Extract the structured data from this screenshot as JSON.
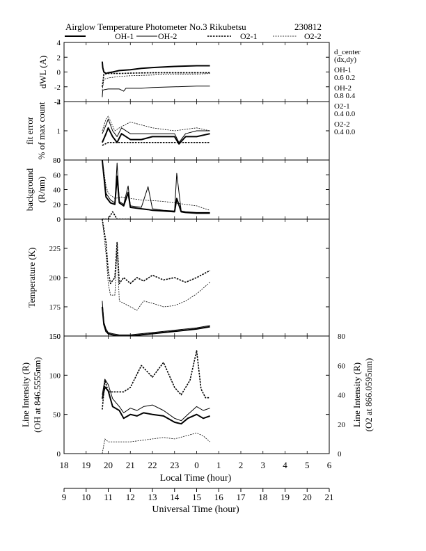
{
  "header": {
    "title": "Airglow Temperature Photometer No.3  Rikubetsu",
    "date": "230812"
  },
  "legend": [
    {
      "name": "OH-1",
      "style": "solid-thick"
    },
    {
      "name": "OH-2",
      "style": "solid-thin"
    },
    {
      "name": "O2-1",
      "style": "dotted-thick"
    },
    {
      "name": "O2-2",
      "style": "dotted-thin"
    }
  ],
  "side_info": {
    "heading1": "d_center",
    "heading2": "(dx,dy)",
    "entries": [
      {
        "label": "OH-1",
        "value": "0.6  0.2"
      },
      {
        "label": "OH-2",
        "value": "0.8  0.4"
      },
      {
        "label": "O2-1",
        "value": "0.4  0.0"
      },
      {
        "label": "O2-2",
        "value": "0.4  0.0"
      }
    ]
  },
  "chart_data": {
    "type": "line",
    "x_axis": {
      "label": "Local Time (hour)",
      "range": [
        18,
        30
      ],
      "ticks": [
        "18",
        "19",
        "20",
        "21",
        "22",
        "23",
        "0",
        "1",
        "2",
        "3",
        "4",
        "5",
        "6"
      ]
    },
    "x2_axis": {
      "label": "Universal Time (hour)",
      "ticks": [
        "9",
        "10",
        "11",
        "12",
        "13",
        "14",
        "15",
        "16",
        "17",
        "18",
        "19",
        "20",
        "21"
      ]
    },
    "panels": [
      {
        "id": "dwl",
        "ylabel": [
          "dWL (A)"
        ],
        "ylim": [
          -4,
          4
        ],
        "yticks": [
          "4",
          "2",
          "0",
          "-2",
          "-4"
        ],
        "series": [
          {
            "name": "OH-1",
            "x": [
              19.73,
              19.75,
              19.8,
              19.9,
              20.0,
              20.2,
              20.5,
              21.0,
              21.5,
              22.0,
              23.0,
              24.0,
              24.6
            ],
            "y": [
              1.4,
              0.6,
              0.0,
              -0.2,
              -0.1,
              0.0,
              0.2,
              0.3,
              0.5,
              0.6,
              0.75,
              0.85,
              0.85
            ]
          },
          {
            "name": "OH-2",
            "x": [
              19.73,
              19.75,
              19.8,
              20.0,
              20.5,
              20.7,
              20.8,
              21.5,
              22.0,
              23.0,
              24.0,
              24.6
            ],
            "y": [
              -3.4,
              -2.5,
              -2.4,
              -2.3,
              -2.3,
              -2.6,
              -2.2,
              -2.2,
              -2.1,
              -2.0,
              -1.9,
              -1.9
            ]
          },
          {
            "name": "O2-1",
            "x": [
              19.73,
              19.8,
              20.0,
              20.5,
              21.0,
              22.0,
              23.0,
              24.0,
              24.6
            ],
            "y": [
              -2.0,
              -0.3,
              -0.2,
              -0.2,
              -0.15,
              -0.1,
              -0.1,
              -0.1,
              -0.1
            ]
          },
          {
            "name": "O2-2",
            "x": [
              19.73,
              19.8,
              20.0,
              20.5,
              21.0,
              22.0,
              23.0,
              24.0,
              24.6
            ],
            "y": [
              -2.5,
              -1.0,
              -0.8,
              -0.6,
              -0.5,
              -0.4,
              -0.3,
              -0.3,
              -0.2
            ]
          }
        ]
      },
      {
        "id": "fit",
        "ylabel": [
          "fit error",
          "% of max count"
        ],
        "ylim": [
          0,
          2
        ],
        "yticks": [
          "2",
          "1",
          "0"
        ],
        "series": [
          {
            "name": "OH-1",
            "x": [
              19.73,
              19.9,
              20.0,
              20.2,
              20.4,
              20.6,
              21.0,
              21.5,
              22.0,
              22.5,
              23.0,
              23.2,
              23.5,
              24.0,
              24.6
            ],
            "y": [
              0.6,
              0.9,
              1.1,
              0.8,
              0.6,
              0.9,
              0.7,
              0.7,
              0.8,
              0.8,
              0.8,
              0.55,
              0.8,
              0.8,
              0.9
            ]
          },
          {
            "name": "OH-2",
            "x": [
              19.73,
              19.9,
              20.0,
              20.2,
              20.4,
              20.6,
              21.0,
              21.5,
              22.0,
              22.5,
              23.0,
              23.2,
              23.5,
              24.0,
              24.6
            ],
            "y": [
              0.9,
              1.2,
              1.4,
              1.0,
              0.8,
              1.1,
              0.9,
              0.9,
              0.9,
              0.9,
              0.9,
              0.6,
              0.9,
              1.0,
              1.0
            ]
          },
          {
            "name": "O2-1",
            "x": [
              19.73,
              20.0,
              20.5,
              21.0,
              21.5,
              22.0,
              23.0,
              24.0,
              24.6
            ],
            "y": [
              0.5,
              0.6,
              0.6,
              0.6,
              0.6,
              0.6,
              0.6,
              0.6,
              0.6
            ]
          },
          {
            "name": "O2-2",
            "x": [
              19.73,
              19.9,
              20.0,
              20.3,
              20.5,
              21.0,
              21.5,
              22.0,
              23.0,
              24.0,
              24.6
            ],
            "y": [
              1.0,
              1.4,
              1.5,
              1.0,
              1.1,
              1.3,
              1.2,
              1.1,
              1.0,
              1.1,
              1.0
            ]
          }
        ]
      },
      {
        "id": "bg",
        "ylabel": [
          "background",
          "(R/nm)"
        ],
        "ylim": [
          0,
          80
        ],
        "yticks": [
          "80",
          "60",
          "40",
          "20",
          "0"
        ],
        "series": [
          {
            "name": "OH-1",
            "x": [
              19.73,
              19.9,
              20.1,
              20.3,
              20.4,
              20.5,
              20.7,
              20.9,
              21.0,
              21.5,
              21.8,
              22.0,
              22.5,
              23.0,
              23.1,
              23.3,
              23.5,
              24.0,
              24.6
            ],
            "y": [
              80,
              30,
              22,
              20,
              58,
              22,
              18,
              36,
              16,
              14,
              13,
              12,
              11,
              10,
              28,
              10,
              9,
              8,
              8
            ]
          },
          {
            "name": "OH-2",
            "x": [
              19.73,
              19.9,
              20.1,
              20.3,
              20.4,
              20.5,
              20.7,
              20.9,
              21.0,
              21.5,
              21.8,
              22.0,
              22.5,
              23.0,
              23.1,
              23.3,
              23.5,
              24.0,
              24.6
            ],
            "y": [
              80,
              35,
              26,
              22,
              76,
              24,
              20,
              45,
              18,
              16,
              44,
              14,
              12,
              11,
              62,
              11,
              10,
              9,
              9
            ]
          },
          {
            "name": "O2-1",
            "x": [
              19.73,
              19.9,
              20.0,
              20.2,
              20.4,
              20.6,
              20.8,
              21.0
            ],
            "y": [
              0,
              0,
              0,
              10,
              0,
              0,
              0,
              0
            ]
          },
          {
            "name": "O2-2",
            "x": [
              19.73,
              19.9,
              20.0,
              20.3,
              20.6,
              21.0,
              21.5,
              22.0,
              22.5,
              23.0,
              23.5,
              24.0,
              24.6
            ],
            "y": [
              80,
              45,
              35,
              28,
              30,
              28,
              26,
              25,
              24,
              22,
              20,
              18,
              12
            ]
          }
        ]
      },
      {
        "id": "temp",
        "ylabel": [
          "Temperature (K)"
        ],
        "ylim": [
          150,
          250
        ],
        "yticks": [
          "225",
          "200",
          "175",
          "150"
        ],
        "series": [
          {
            "name": "OH-1",
            "x": [
              19.73,
              19.8,
              19.9,
              20.0,
              20.2,
              20.5,
              21.0,
              21.5,
              22.0,
              23.0,
              24.0,
              24.6
            ],
            "y": [
              175,
              160,
              154,
              152,
              151,
              150,
              150,
              151,
              152,
              154,
              156,
              158
            ]
          },
          {
            "name": "OH-2",
            "x": [
              19.73,
              19.8,
              19.9,
              20.0,
              20.2,
              20.5,
              21.0,
              21.5,
              22.0,
              23.0,
              24.0,
              24.6
            ],
            "y": [
              180,
              162,
              156,
              153,
              152,
              151,
              151,
              152,
              153,
              155,
              157,
              159
            ]
          },
          {
            "name": "O2-1",
            "x": [
              19.73,
              19.9,
              20.0,
              20.1,
              20.3,
              20.4,
              20.5,
              20.7,
              21.0,
              21.3,
              21.6,
              22.0,
              22.5,
              23.0,
              23.5,
              24.0,
              24.6
            ],
            "y": [
              250,
              230,
              205,
              195,
              200,
              230,
              195,
              200,
              195,
              200,
              197,
              202,
              198,
              200,
              196,
              200,
              206
            ]
          },
          {
            "name": "O2-2",
            "x": [
              19.73,
              19.9,
              20.0,
              20.1,
              20.3,
              20.4,
              20.5,
              20.7,
              21.0,
              21.3,
              21.6,
              22.0,
              22.5,
              23.0,
              23.5,
              24.0,
              24.6
            ],
            "y": [
              250,
              220,
              195,
              185,
              185,
              225,
              180,
              178,
              175,
              172,
              180,
              178,
              175,
              176,
              180,
              186,
              196
            ]
          }
        ]
      },
      {
        "id": "int",
        "ylabel": [
          "Line Intensity (R)",
          "(OH at 846.5555nm)"
        ],
        "ylabel_right": [
          "Line Intensity (R)",
          "(O2 at 866.0595nm)"
        ],
        "ylim": [
          0,
          150
        ],
        "yticks": [
          "150",
          "100",
          "50",
          "0"
        ],
        "ylim_right": [
          0,
          80
        ],
        "yticks_right": [
          "80",
          "60",
          "40",
          "20",
          "0"
        ],
        "series": [
          {
            "name": "OH-1",
            "axis": "left",
            "x": [
              19.73,
              19.85,
              20.0,
              20.2,
              20.5,
              20.7,
              21.0,
              21.3,
              21.6,
              22.0,
              22.5,
              23.0,
              23.3,
              23.6,
              24.0,
              24.3,
              24.6
            ],
            "y": [
              70,
              85,
              80,
              60,
              55,
              45,
              50,
              48,
              52,
              50,
              48,
              40,
              38,
              45,
              50,
              45,
              48
            ]
          },
          {
            "name": "OH-2",
            "axis": "left",
            "x": [
              19.73,
              19.85,
              20.0,
              20.2,
              20.5,
              20.7,
              21.0,
              21.3,
              21.6,
              22.0,
              22.5,
              23.0,
              23.3,
              23.6,
              24.0,
              24.3,
              24.6
            ],
            "y": [
              75,
              95,
              88,
              70,
              60,
              52,
              58,
              55,
              60,
              62,
              55,
              45,
              42,
              50,
              60,
              55,
              58
            ]
          },
          {
            "name": "O2-1",
            "axis": "right",
            "x": [
              19.73,
              19.85,
              20.0,
              20.3,
              20.7,
              21.0,
              21.5,
              22.0,
              22.5,
              23.0,
              23.3,
              23.7,
              24.0,
              24.2,
              24.4,
              24.6
            ],
            "y": [
              30,
              50,
              42,
              42,
              42,
              45,
              60,
              52,
              62,
              45,
              40,
              50,
              70,
              44,
              38,
              38
            ]
          },
          {
            "name": "O2-2",
            "axis": "right",
            "x": [
              19.73,
              19.85,
              20.0,
              20.5,
              21.0,
              21.5,
              22.0,
              22.5,
              23.0,
              23.5,
              24.0,
              24.3,
              24.6
            ],
            "y": [
              0,
              10,
              8,
              8,
              8,
              9,
              10,
              11,
              10,
              12,
              14,
              12,
              8
            ]
          }
        ]
      }
    ]
  }
}
